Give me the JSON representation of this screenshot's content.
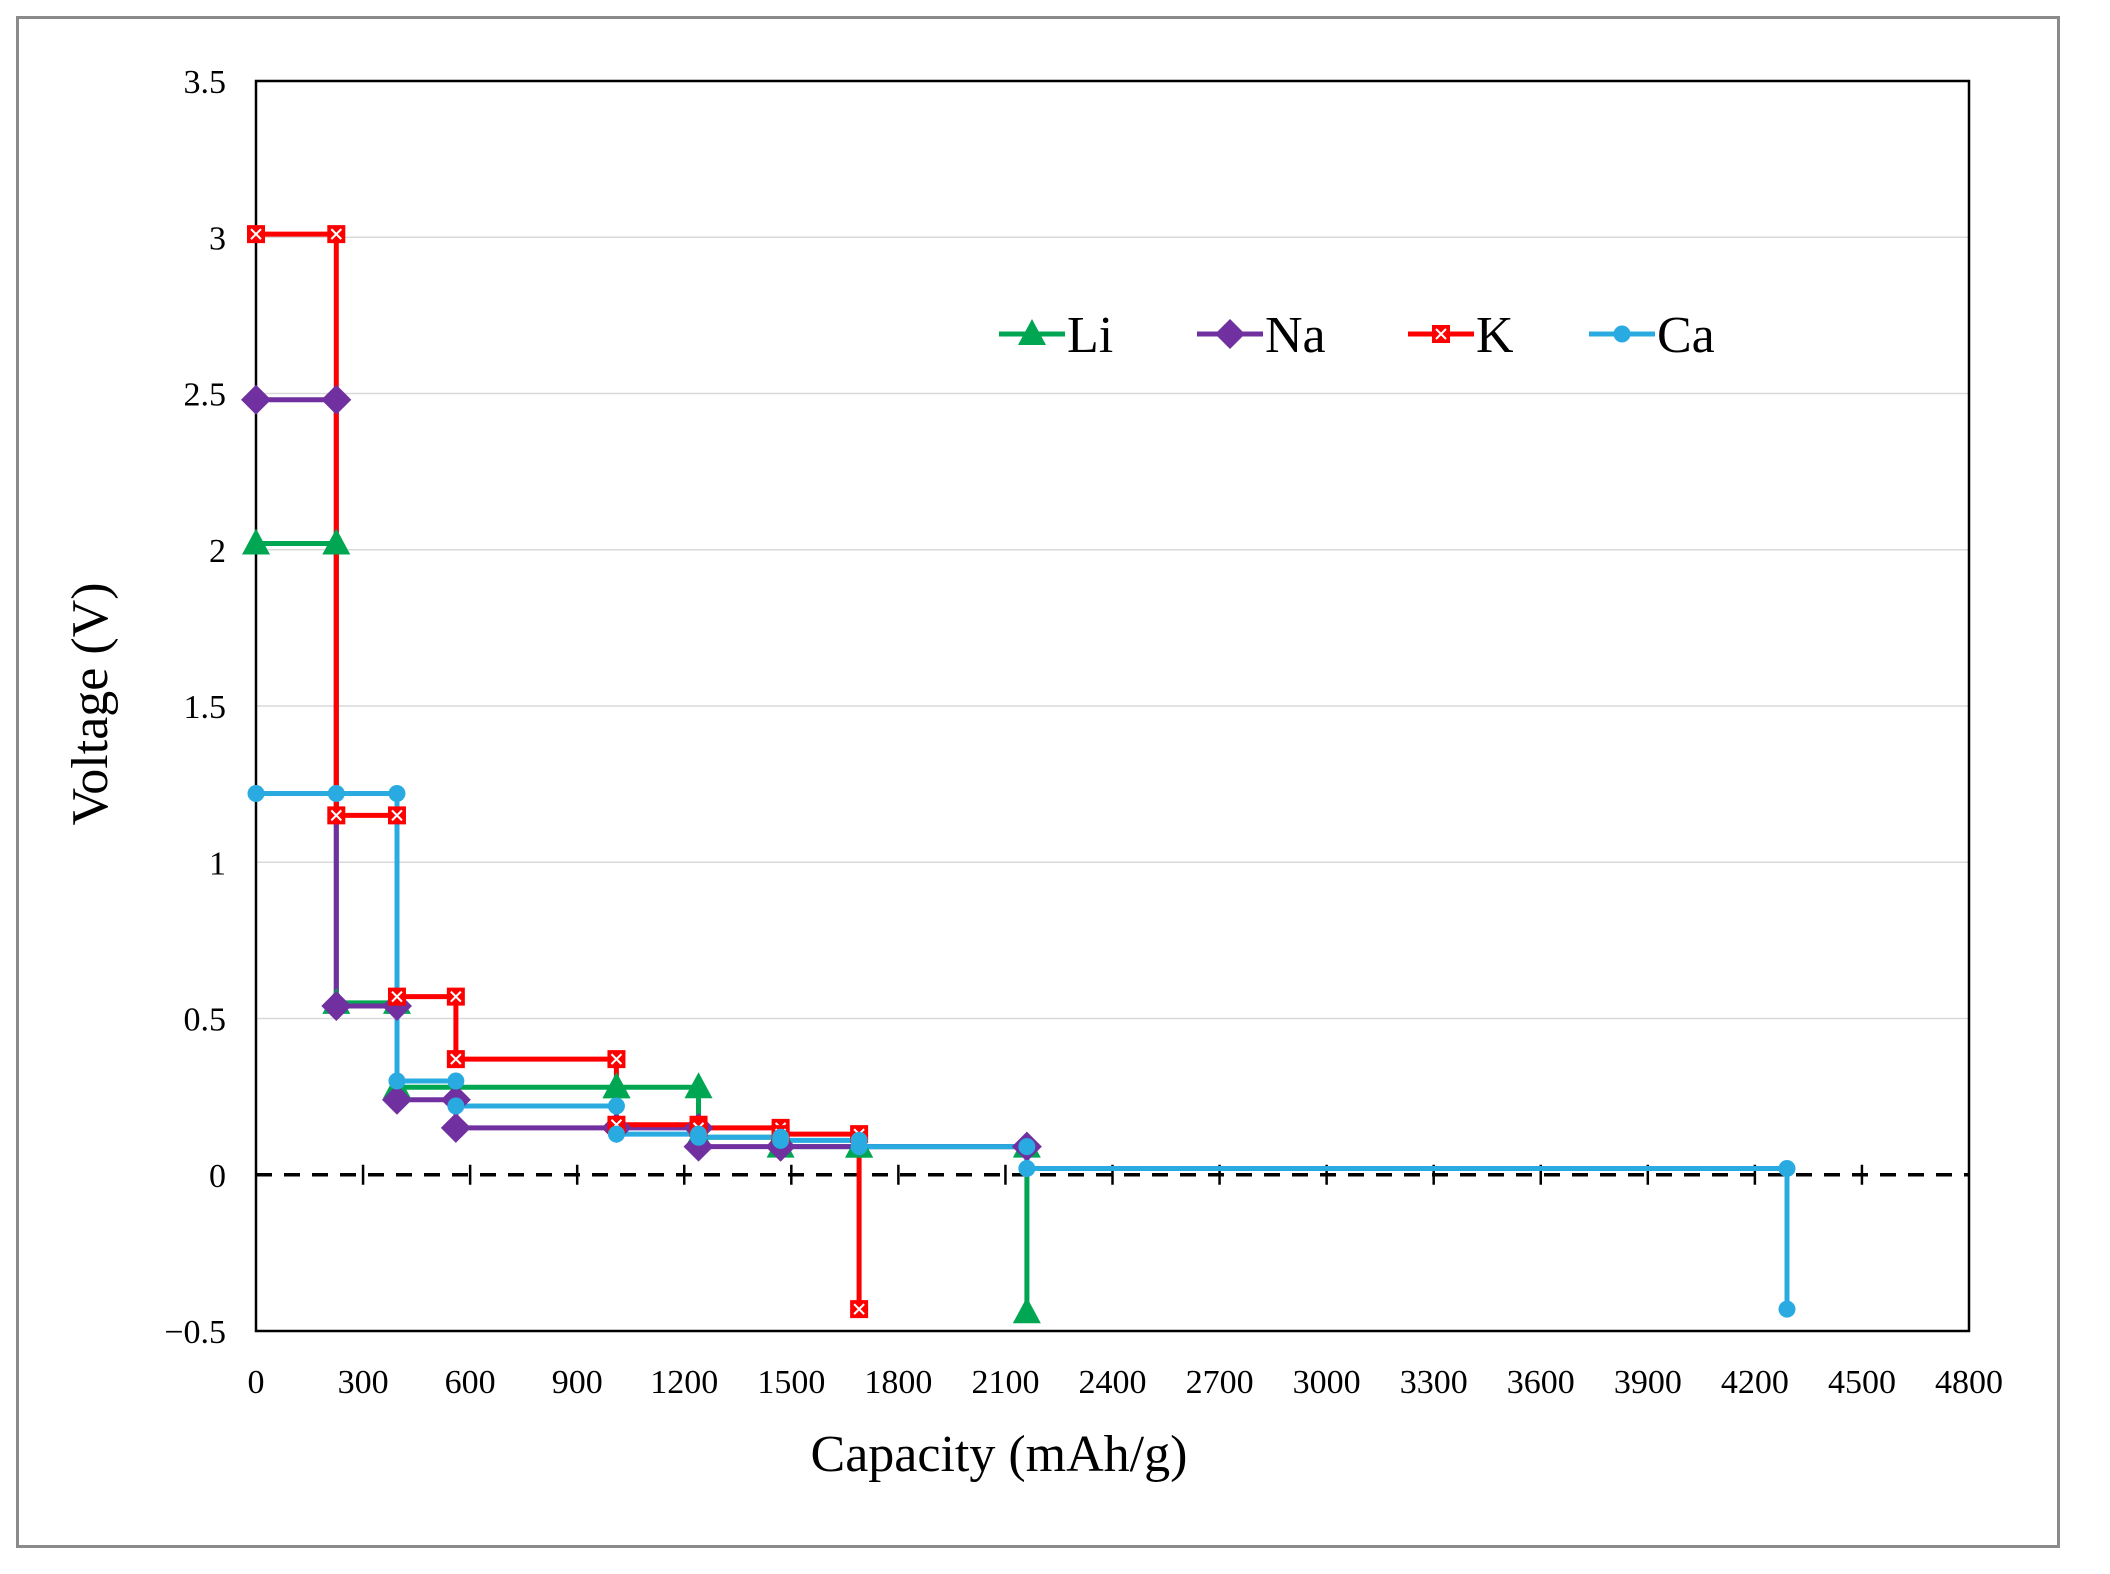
{
  "chart_data": {
    "type": "line",
    "title": "",
    "xlabel": "Capacity (mAh/g)",
    "ylabel": "Voltage (V)",
    "xlim": [
      0,
      4800
    ],
    "ylim": [
      -0.5,
      3.5
    ],
    "xticks": [
      0,
      300,
      600,
      900,
      1200,
      1500,
      1800,
      2100,
      2400,
      2700,
      3000,
      3300,
      3600,
      3900,
      4200,
      4500,
      4800
    ],
    "yticks": [
      -0.5,
      0,
      0.5,
      1,
      1.5,
      2,
      2.5,
      3,
      3.5
    ],
    "x_tick_labels": [
      "0",
      "300",
      "600",
      "900",
      "1200",
      "1500",
      "1800",
      "2100",
      "2400",
      "2700",
      "3000",
      "3300",
      "3600",
      "3900",
      "4200",
      "4500",
      "4800"
    ],
    "y_tick_labels": [
      "−0.5",
      "0",
      "0.5",
      "1",
      "1.5",
      "2",
      "2.5",
      "3",
      "3.5"
    ],
    "grid": "horizontal",
    "reference_line": {
      "y": 0,
      "style": "dashed"
    },
    "legend_position": "top-right",
    "series": [
      {
        "name": "Li",
        "color": "#00a651",
        "marker": "triangle",
        "points": [
          [
            0,
            2.02
          ],
          [
            225,
            2.02
          ],
          [
            225,
            0.55
          ],
          [
            395,
            0.55
          ],
          [
            395,
            0.28
          ],
          [
            1010,
            0.28
          ],
          [
            1010,
            0.28
          ],
          [
            1240,
            0.28
          ],
          [
            1240,
            0.12
          ],
          [
            1470,
            0.12
          ],
          [
            1470,
            0.09
          ],
          [
            1690,
            0.09
          ],
          [
            1690,
            0.09
          ],
          [
            2160,
            0.09
          ],
          [
            2160,
            -0.44
          ]
        ]
      },
      {
        "name": "Na",
        "color": "#7030a0",
        "marker": "diamond",
        "points": [
          [
            0,
            2.48
          ],
          [
            225,
            2.48
          ],
          [
            225,
            0.54
          ],
          [
            395,
            0.54
          ],
          [
            395,
            0.24
          ],
          [
            560,
            0.24
          ],
          [
            560,
            0.15
          ],
          [
            1010,
            0.15
          ],
          [
            1010,
            0.15
          ],
          [
            1240,
            0.15
          ],
          [
            1240,
            0.09
          ],
          [
            1470,
            0.09
          ],
          [
            1470,
            0.09
          ],
          [
            2160,
            0.09
          ]
        ]
      },
      {
        "name": "K",
        "color": "#ff0000",
        "marker": "square-x",
        "points": [
          [
            0,
            3.01
          ],
          [
            225,
            3.01
          ],
          [
            225,
            1.15
          ],
          [
            395,
            1.15
          ],
          [
            395,
            0.57
          ],
          [
            560,
            0.57
          ],
          [
            560,
            0.37
          ],
          [
            1010,
            0.37
          ],
          [
            1010,
            0.16
          ],
          [
            1240,
            0.16
          ],
          [
            1240,
            0.15
          ],
          [
            1470,
            0.15
          ],
          [
            1470,
            0.13
          ],
          [
            1690,
            0.13
          ],
          [
            1690,
            -0.43
          ]
        ]
      },
      {
        "name": "Ca",
        "color": "#29abe2",
        "marker": "circle",
        "points": [
          [
            0,
            1.22
          ],
          [
            225,
            1.22
          ],
          [
            395,
            1.22
          ],
          [
            395,
            0.3
          ],
          [
            560,
            0.3
          ],
          [
            560,
            0.22
          ],
          [
            1010,
            0.22
          ],
          [
            1010,
            0.13
          ],
          [
            1240,
            0.13
          ],
          [
            1240,
            0.12
          ],
          [
            1470,
            0.12
          ],
          [
            1470,
            0.11
          ],
          [
            1690,
            0.11
          ],
          [
            1690,
            0.09
          ],
          [
            2160,
            0.09
          ],
          [
            2160,
            0.02
          ],
          [
            4290,
            0.02
          ],
          [
            4290,
            -0.43
          ]
        ]
      }
    ]
  }
}
